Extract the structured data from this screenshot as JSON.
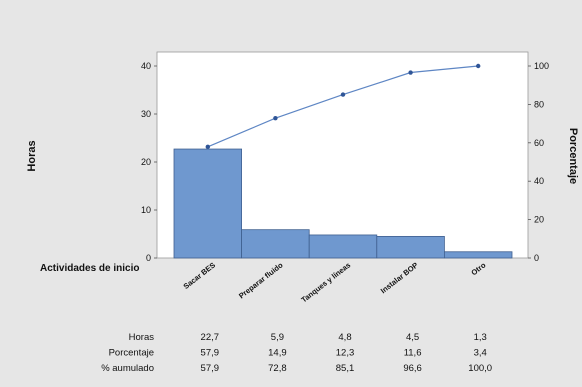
{
  "chart_data": {
    "type": "bar",
    "subtype": "pareto",
    "categories": [
      "Sacar BES",
      "Preparar fluido",
      "Tanques y líneas",
      "Instalar BOP",
      "Otro"
    ],
    "series": [
      {
        "name": "Horas",
        "values": [
          22.7,
          5.9,
          4.8,
          4.5,
          1.3
        ],
        "axis": "left",
        "kind": "bar"
      },
      {
        "name": "% acumulado",
        "values": [
          57.9,
          72.8,
          85.1,
          96.6,
          100.0
        ],
        "axis": "right",
        "kind": "line"
      }
    ],
    "ylabel": "Horas",
    "ylabel_right": "Porcentaje",
    "xlabel": "Actividades de inicio",
    "ylim": [
      0,
      40
    ],
    "ylim_right": [
      0,
      100
    ],
    "yticks": [
      "0",
      "10",
      "20",
      "30",
      "40"
    ],
    "yticks_right": [
      "0",
      "20",
      "40",
      "60",
      "80",
      "100"
    ],
    "grid": false,
    "colors": {
      "bar": "#6f98cf",
      "bar_edge": "#3f5f8f",
      "line": "#5e86c4",
      "point": "#2f5597",
      "background": "#e6e6e6",
      "plot_bg": "#ffffff"
    },
    "table": {
      "rows": [
        {
          "label": "Horas",
          "values": [
            "22,7",
            "5,9",
            "4,8",
            "4,5",
            "1,3"
          ]
        },
        {
          "label": "Porcentaje",
          "values": [
            "57,9",
            "14,9",
            "12,3",
            "11,6",
            "3,4"
          ]
        },
        {
          "label": "% aumulado",
          "values": [
            "57,9",
            "72,8",
            "85,1",
            "96,6",
            "100,0"
          ]
        }
      ]
    }
  }
}
